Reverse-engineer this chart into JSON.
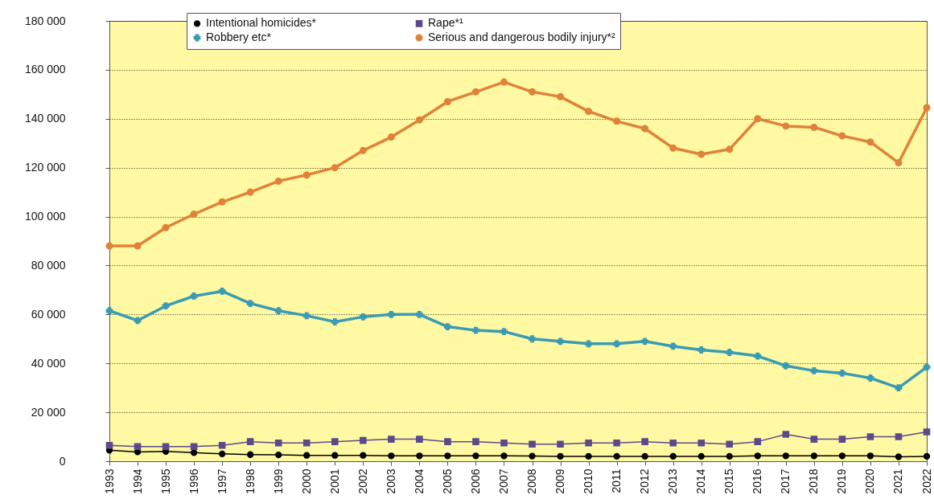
{
  "chart_data": {
    "type": "line",
    "categories": [
      "1993",
      "1994",
      "1995",
      "1996",
      "1997",
      "1998",
      "1999",
      "2000",
      "2001",
      "2002",
      "2003",
      "2004",
      "2005",
      "2006",
      "2007",
      "2008",
      "2009",
      "2010",
      "2011",
      "2012",
      "2013",
      "2014",
      "2015",
      "2016",
      "2017",
      "2018",
      "2019",
      "2020",
      "2021",
      "2022"
    ],
    "series": [
      {
        "name": "Intentional homicides*",
        "color": "#000000",
        "marker": "circle",
        "values": [
          4500,
          3800,
          4000,
          3500,
          3000,
          2700,
          2600,
          2400,
          2400,
          2400,
          2200,
          2200,
          2200,
          2200,
          2200,
          2100,
          2000,
          2000,
          2000,
          2000,
          2000,
          2000,
          2000,
          2200,
          2200,
          2200,
          2200,
          2200,
          1800,
          2000
        ]
      },
      {
        "name": "Rape*¹",
        "color": "#5b4a8b",
        "marker": "square",
        "values": [
          6500,
          6000,
          6000,
          6000,
          6500,
          8000,
          7500,
          7500,
          8000,
          8500,
          9000,
          9000,
          8000,
          8000,
          7500,
          7000,
          7000,
          7500,
          7500,
          8000,
          7500,
          7500,
          7000,
          8000,
          11000,
          9000,
          9000,
          10000,
          10000,
          12000
        ]
      },
      {
        "name": "Robbery etc*",
        "color": "#3a9bb5",
        "marker": "cross",
        "values": [
          61500,
          57500,
          63500,
          67500,
          69500,
          64500,
          61500,
          59500,
          57000,
          59000,
          60000,
          60000,
          55000,
          53500,
          53000,
          50000,
          49000,
          48000,
          48000,
          49000,
          47000,
          45500,
          44500,
          43000,
          39000,
          37000,
          36000,
          34000,
          30000,
          38500
        ]
      },
      {
        "name": "Serious and dangerous bodily injury*²",
        "color": "#e0823a",
        "marker": "circle",
        "values": [
          88000,
          88000,
          95500,
          101000,
          106000,
          110000,
          114500,
          117000,
          120000,
          127000,
          132500,
          139500,
          147000,
          151000,
          155000,
          151000,
          149000,
          143000,
          139000,
          136000,
          128000,
          125500,
          127500,
          140000,
          137000,
          136500,
          133000,
          130500,
          122000,
          144500
        ]
      }
    ],
    "ylim": [
      0,
      180000
    ],
    "yticks": [
      {
        "value": 0,
        "label": "0"
      },
      {
        "value": 20000,
        "label": "20 000"
      },
      {
        "value": 40000,
        "label": "40 000"
      },
      {
        "value": 60000,
        "label": "60 000"
      },
      {
        "value": 80000,
        "label": "80 000"
      },
      {
        "value": 100000,
        "label": "100 000"
      },
      {
        "value": 120000,
        "label": "120 000"
      },
      {
        "value": 140000,
        "label": "140 000"
      },
      {
        "value": 160000,
        "label": "160 000"
      },
      {
        "value": 180000,
        "label": "180 000"
      }
    ],
    "grid": "y",
    "legend": "top"
  }
}
